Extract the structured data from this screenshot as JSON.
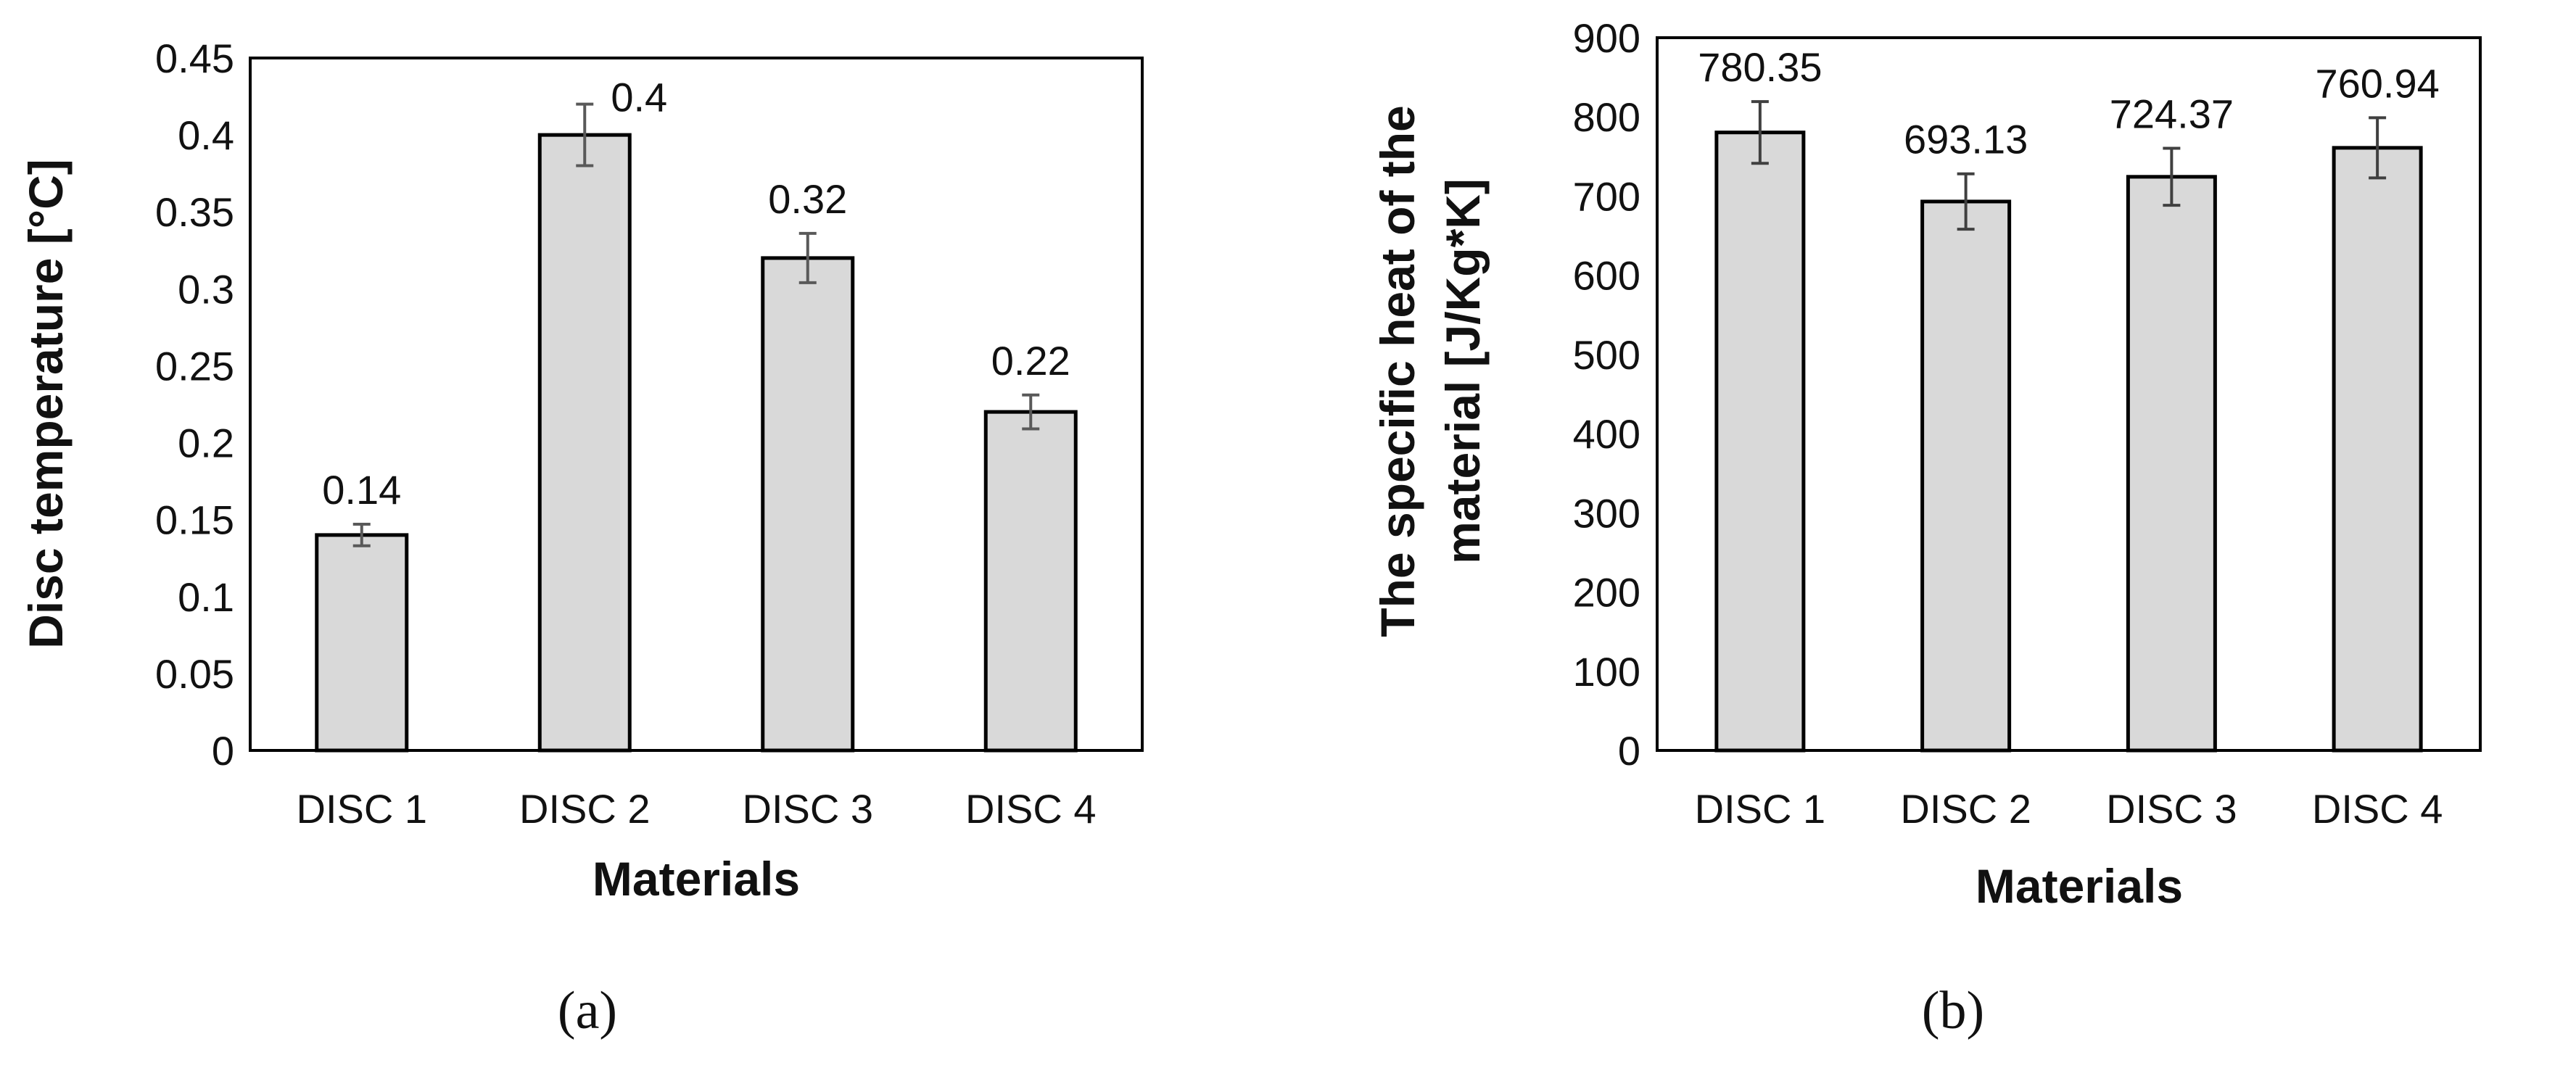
{
  "colors": {
    "bar_fill": "#d9d9d9",
    "bar_stroke": "#000000",
    "frame": "#000000",
    "error_bar_a": "#595959",
    "error_bar_b": "#404040"
  },
  "chart_data": [
    {
      "type": "bar",
      "panel_label": "(a)",
      "title": "",
      "xlabel": "Materials",
      "ylabel": "Disc temperature [°C]",
      "ylabel_lines": [
        "Disc temperature [°C]"
      ],
      "categories": [
        "DISC 1",
        "DISC 2",
        "DISC 3",
        "DISC 4"
      ],
      "series": [
        {
          "values": [
            0.14,
            0.4,
            0.32,
            0.22
          ],
          "data_labels": [
            "0.14",
            "0.4",
            "0.32",
            "0.22"
          ],
          "errors": [
            0.007,
            0.02,
            0.016,
            0.011
          ]
        }
      ],
      "ylim": [
        0,
        0.45
      ],
      "yticks": [
        0,
        0.05,
        0.1,
        0.15,
        0.2,
        0.25,
        0.3,
        0.35,
        0.4,
        0.45
      ],
      "ytick_labels": [
        "0",
        "0.05",
        "0.1",
        "0.15",
        "0.2",
        "0.25",
        "0.3",
        "0.35",
        "0.4",
        "0.45"
      ],
      "grid": false,
      "legend": "none"
    },
    {
      "type": "bar",
      "panel_label": "(b)",
      "title": "",
      "xlabel": "Materials",
      "ylabel": "The specific heat of the material [J/Kg*K]",
      "ylabel_lines": [
        "The specific heat of the",
        "material [J/Kg*K]"
      ],
      "categories": [
        "DISC 1",
        "DISC 2",
        "DISC 3",
        "DISC 4"
      ],
      "series": [
        {
          "values": [
            780.35,
            693.13,
            724.37,
            760.94
          ],
          "data_labels": [
            "780.35",
            "693.13",
            "724.37",
            "760.94"
          ],
          "errors": [
            39,
            35,
            36,
            38
          ]
        }
      ],
      "ylim": [
        0,
        900
      ],
      "yticks": [
        0,
        100,
        200,
        300,
        400,
        500,
        600,
        700,
        800,
        900
      ],
      "ytick_labels": [
        "0",
        "100",
        "200",
        "300",
        "400",
        "500",
        "600",
        "700",
        "800",
        "900"
      ],
      "grid": false,
      "legend": "none"
    }
  ]
}
